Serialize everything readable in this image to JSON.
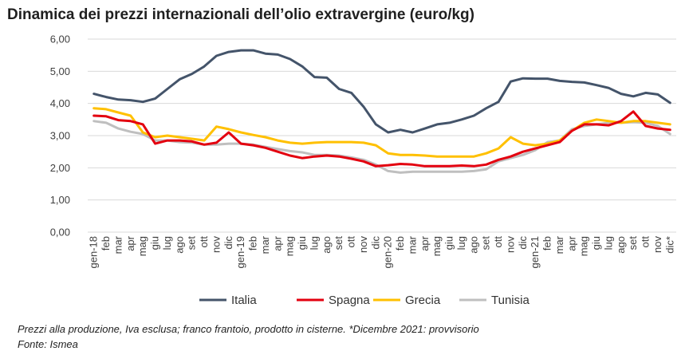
{
  "title": "Dinamica dei prezzi internazionali dell’olio extravergine (euro/kg)",
  "notes": {
    "line1": "Prezzi alla produzione, Iva esclusa; franco frantoio, prodotto in cisterne. *Dicembre 2021: provvisorio",
    "line2": "Fonte: Ismea"
  },
  "chart_data": {
    "type": "line",
    "title": "Dinamica dei prezzi internazionali dell’olio extravergine (euro/kg)",
    "xlabel": "",
    "ylabel": "",
    "ylim": [
      0,
      6
    ],
    "yticks": [
      "0,00",
      "1,00",
      "2,00",
      "3,00",
      "4,00",
      "5,00",
      "6,00"
    ],
    "grid": true,
    "legend_position": "bottom",
    "categories": [
      "gen-18",
      "feb",
      "mar",
      "apr",
      "mag",
      "giu",
      "lug",
      "ago",
      "set",
      "ott",
      "nov",
      "dic",
      "gen-19",
      "feb",
      "mar",
      "apr",
      "mag",
      "giu",
      "lug",
      "ago",
      "set",
      "ott",
      "nov",
      "dic",
      "gen-20",
      "feb",
      "mar",
      "apr",
      "mag",
      "giu",
      "lug",
      "ago",
      "set",
      "ott",
      "nov",
      "dic",
      "gen-21",
      "feb",
      "mar",
      "apr",
      "mag",
      "giu",
      "lug",
      "ago",
      "set",
      "ott",
      "nov",
      "dic*"
    ],
    "series": [
      {
        "name": "Italia",
        "color": "#44546A",
        "values": [
          4.3,
          4.2,
          4.12,
          4.1,
          4.05,
          4.15,
          4.45,
          4.75,
          4.92,
          5.15,
          5.48,
          5.6,
          5.65,
          5.65,
          5.55,
          5.52,
          5.38,
          5.15,
          4.82,
          4.8,
          4.45,
          4.33,
          3.9,
          3.35,
          3.1,
          3.18,
          3.1,
          3.22,
          3.35,
          3.4,
          3.5,
          3.62,
          3.85,
          4.05,
          4.68,
          4.78,
          4.77,
          4.77,
          4.7,
          4.67,
          4.65,
          4.57,
          4.48,
          4.3,
          4.22,
          4.33,
          4.28,
          4.02
        ]
      },
      {
        "name": "Spagna",
        "color": "#E3000F",
        "values": [
          3.62,
          3.6,
          3.48,
          3.45,
          3.35,
          2.75,
          2.85,
          2.85,
          2.82,
          2.72,
          2.78,
          3.1,
          2.75,
          2.7,
          2.62,
          2.5,
          2.38,
          2.3,
          2.35,
          2.38,
          2.35,
          2.28,
          2.2,
          2.05,
          2.08,
          2.12,
          2.1,
          2.05,
          2.05,
          2.05,
          2.07,
          2.05,
          2.1,
          2.25,
          2.35,
          2.5,
          2.6,
          2.7,
          2.8,
          3.15,
          3.35,
          3.35,
          3.32,
          3.45,
          3.75,
          3.3,
          3.22,
          3.18
        ]
      },
      {
        "name": "Grecia",
        "color": "#FFC000",
        "values": [
          3.85,
          3.82,
          3.72,
          3.62,
          3.1,
          2.95,
          3.0,
          2.95,
          2.9,
          2.85,
          3.28,
          3.2,
          3.1,
          3.02,
          2.95,
          2.85,
          2.78,
          2.75,
          2.78,
          2.8,
          2.8,
          2.8,
          2.78,
          2.7,
          2.45,
          2.4,
          2.4,
          2.38,
          2.35,
          2.35,
          2.35,
          2.35,
          2.45,
          2.6,
          2.95,
          2.75,
          2.7,
          2.75,
          2.85,
          3.15,
          3.4,
          3.5,
          3.45,
          3.4,
          3.45,
          3.45,
          3.4,
          3.35
        ]
      },
      {
        "name": "Tunisia",
        "color": "#BFBFBF",
        "values": [
          3.45,
          3.4,
          3.22,
          3.12,
          3.05,
          2.85,
          2.85,
          2.8,
          2.78,
          2.72,
          2.72,
          2.75,
          2.75,
          2.72,
          2.65,
          2.58,
          2.52,
          2.48,
          2.4,
          2.4,
          2.38,
          2.32,
          2.25,
          2.1,
          1.9,
          1.85,
          1.88,
          1.88,
          1.88,
          1.88,
          1.88,
          1.9,
          1.95,
          2.2,
          2.3,
          2.4,
          2.55,
          2.8,
          2.85,
          3.2,
          3.3,
          3.35,
          3.4,
          3.4,
          3.42,
          3.4,
          3.3,
          3.05
        ]
      }
    ]
  }
}
